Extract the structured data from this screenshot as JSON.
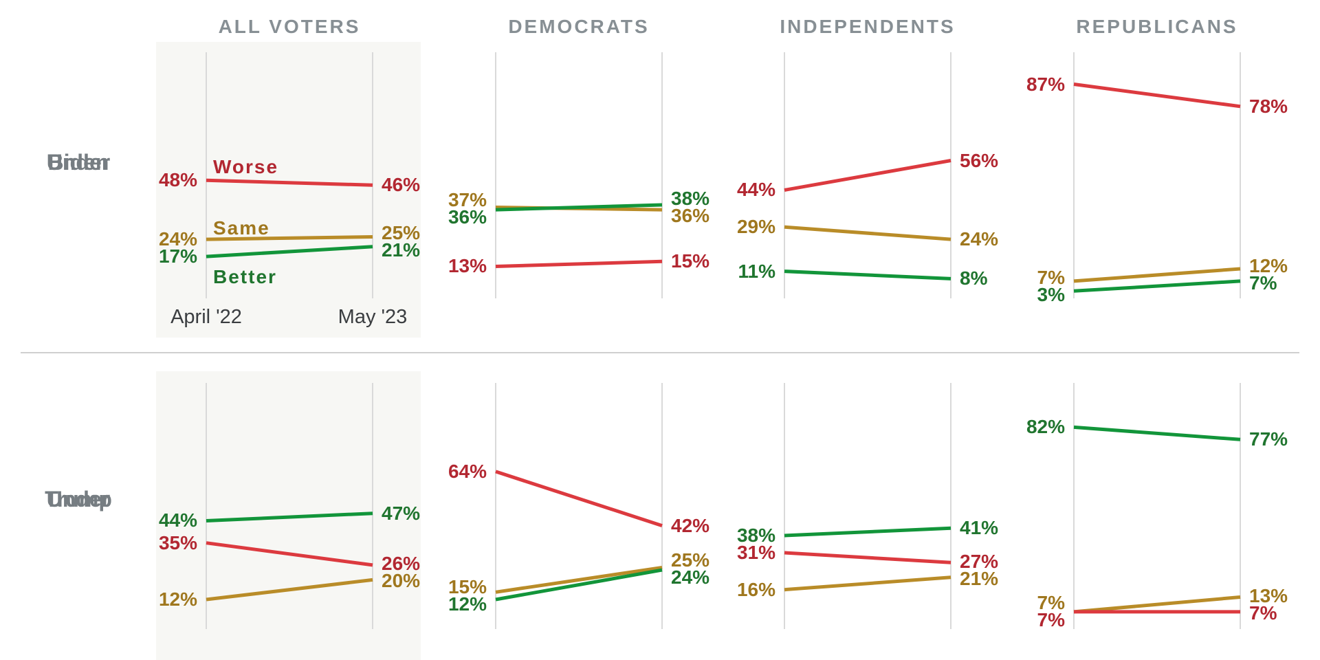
{
  "chart_data": {
    "type": "line",
    "subtype": "slope-small-multiples",
    "unit": "%",
    "x": [
      "April '22",
      "May '23"
    ],
    "ylim": [
      0,
      100
    ],
    "grid": "two vertical gridlines per panel (one per time point)",
    "legend_position": "inline words on first panel only",
    "columns": [
      "ALL VOTERS",
      "DEMOCRATS",
      "INDEPENDENTS",
      "REPUBLICANS"
    ],
    "legend": [
      {
        "id": "worse",
        "label": "Worse",
        "line_color": "#dc3a3f",
        "label_color": "#b22731"
      },
      {
        "id": "same",
        "label": "Same",
        "line_color": "#b98c28",
        "label_color": "#9f771e"
      },
      {
        "id": "better",
        "label": "Better",
        "line_color": "#12953a",
        "label_color": "#20752f"
      }
    ],
    "rows": [
      {
        "label_lines": [
          "Under",
          "Biden"
        ],
        "groups": [
          {
            "worse": [
              48,
              46
            ],
            "same": [
              24,
              25
            ],
            "better": [
              17,
              21
            ]
          },
          {
            "worse": [
              13,
              15
            ],
            "same": [
              37,
              36
            ],
            "better": [
              36,
              38
            ]
          },
          {
            "worse": [
              44,
              56
            ],
            "same": [
              29,
              24
            ],
            "better": [
              11,
              8
            ]
          },
          {
            "worse": [
              87,
              78
            ],
            "same": [
              7,
              12
            ],
            "better": [
              3,
              7
            ]
          }
        ]
      },
      {
        "label_lines": [
          "Under",
          "Trump"
        ],
        "groups": [
          {
            "worse": [
              35,
              26
            ],
            "same": [
              12,
              20
            ],
            "better": [
              44,
              47
            ]
          },
          {
            "worse": [
              64,
              42
            ],
            "same": [
              15,
              25
            ],
            "better": [
              12,
              24
            ]
          },
          {
            "worse": [
              31,
              27
            ],
            "same": [
              16,
              21
            ],
            "better": [
              38,
              41
            ]
          },
          {
            "worse": [
              7,
              7
            ],
            "same": [
              7,
              13
            ],
            "better": [
              82,
              77
            ]
          }
        ]
      }
    ],
    "colors": {
      "header_text": "#878f94",
      "row_label_text": "#767d82",
      "date_text": "#3a3d40",
      "panel_bg": "#f7f7f4",
      "gridline": "#d9d9d9",
      "divider": "#cfcfcf",
      "background": "#ffffff"
    }
  }
}
